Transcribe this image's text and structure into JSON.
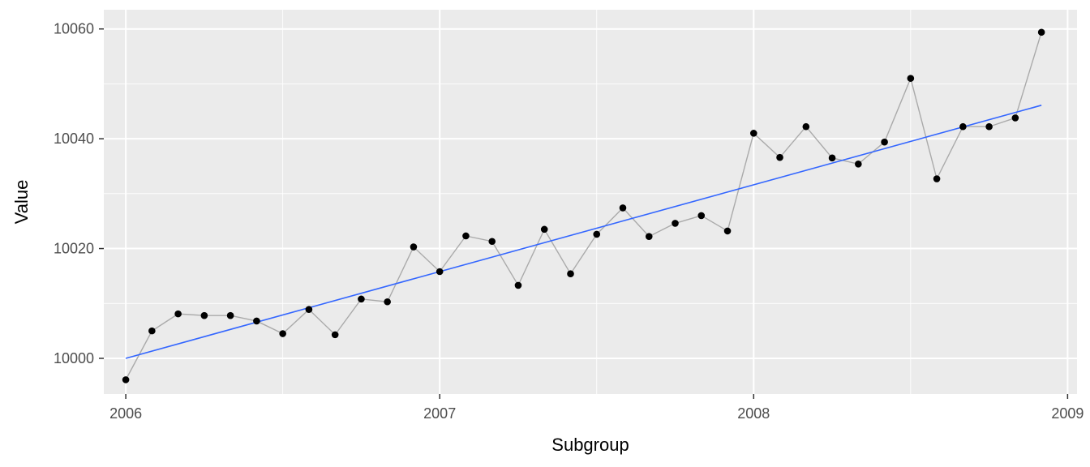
{
  "chart_data": {
    "type": "line",
    "xlabel": "Subgroup",
    "ylabel": "Value",
    "xlim": [
      2005.93,
      2009.03
    ],
    "ylim": [
      9993.5,
      10063.5
    ],
    "x_ticks": [
      2006,
      2007,
      2008,
      2009
    ],
    "x_tick_labels": [
      "2006",
      "2007",
      "2008",
      "2009"
    ],
    "y_ticks": [
      10000,
      10020,
      10040,
      10060
    ],
    "y_tick_labels": [
      "10000",
      "10020",
      "10040",
      "10060"
    ],
    "grid": true,
    "colors": {
      "panel_background": "#ebebeb",
      "grid_major": "#ffffff",
      "series_line": "#aaaaaa",
      "points": "#000000",
      "trend": "#3366ff"
    },
    "series": [
      {
        "x": [
          2006.0,
          2006.0833,
          2006.1667,
          2006.25,
          2006.3333,
          2006.4167,
          2006.5,
          2006.5833,
          2006.6667,
          2006.75,
          2006.8333,
          2006.9167,
          2007.0,
          2007.0833,
          2007.1667,
          2007.25,
          2007.3333,
          2007.4167,
          2007.5,
          2007.5833,
          2007.6667,
          2007.75,
          2007.8333,
          2007.9167,
          2008.0,
          2008.0833,
          2008.1667,
          2008.25,
          2008.3333,
          2008.4167,
          2008.5,
          2008.5833,
          2008.6667,
          2008.75,
          2008.8333,
          2008.9167
        ],
        "values": [
          9996.1,
          10005.0,
          10008.1,
          10007.8,
          10007.8,
          10006.8,
          10004.5,
          10008.9,
          10004.3,
          10010.8,
          10010.3,
          10020.3,
          10015.8,
          10022.3,
          10021.3,
          10013.3,
          10023.5,
          10015.4,
          10022.6,
          10027.4,
          10022.2,
          10024.6,
          10026.0,
          10023.2,
          10041.0,
          10036.6,
          10042.2,
          10036.5,
          10035.4,
          10039.4,
          10051.0,
          10032.7,
          10042.2,
          10042.2,
          10043.8,
          10059.4
        ]
      }
    ],
    "trend": {
      "x": [
        2006.0,
        2008.9167
      ],
      "values": [
        10000.0,
        10046.1
      ]
    }
  }
}
